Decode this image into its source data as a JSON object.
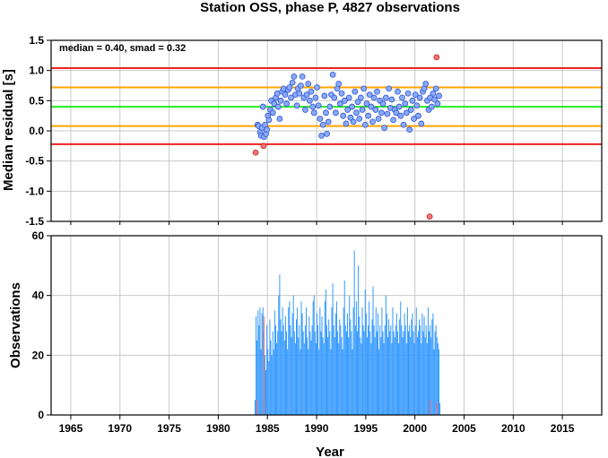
{
  "title": "Station OSS, phase P, 4827 observations",
  "colors": {
    "median_line": "#22ee22",
    "smad_line": "#ffa500",
    "limit_line": "#ee2222",
    "point_fill": "#88aaff",
    "point_stroke": "#3355cc",
    "outlier_fill": "#ff7070",
    "bar": "#3399ff",
    "bar_outlier": "#ff6666",
    "grid": "#c8c8c8"
  },
  "chart_data": [
    {
      "type": "scatter",
      "annotation": "median = 0.40, smad = 0.32",
      "ylabel": "Median residual [s]",
      "xlim": [
        1963,
        2019
      ],
      "ylim": [
        -1.5,
        1.5
      ],
      "y_ticks": [
        "1.5",
        "1.0",
        "0.5",
        "0.0",
        "-0.5",
        "-1.0",
        "-1.5"
      ],
      "y_tick_values": [
        1.5,
        1.0,
        0.5,
        0.0,
        -0.5,
        -1.0,
        -1.5
      ],
      "grid": true,
      "horizontal_lines": [
        {
          "name": "upper limit",
          "value": 1.04,
          "color": "#ee2222"
        },
        {
          "name": "median + smad",
          "value": 0.72,
          "color": "#ffa500"
        },
        {
          "name": "median",
          "value": 0.4,
          "color": "#22ee22"
        },
        {
          "name": "median - smad",
          "value": 0.08,
          "color": "#ffa500"
        },
        {
          "name": "lower limit",
          "value": -0.22,
          "color": "#ee2222"
        }
      ],
      "points": [
        [
          1984.0,
          0.1
        ],
        [
          1984.1,
          0.08
        ],
        [
          1984.25,
          -0.02
        ],
        [
          1984.35,
          -0.08
        ],
        [
          1984.45,
          0.05
        ],
        [
          1984.55,
          0.4
        ],
        [
          1984.65,
          -0.1
        ],
        [
          1984.75,
          0.1
        ],
        [
          1984.85,
          -0.05
        ],
        [
          1984.95,
          0.02
        ],
        [
          1985.05,
          0.25
        ],
        [
          1985.15,
          0.18
        ],
        [
          1985.3,
          0.35
        ],
        [
          1985.4,
          0.5
        ],
        [
          1985.55,
          0.3
        ],
        [
          1985.7,
          0.45
        ],
        [
          1985.85,
          0.55
        ],
        [
          1986.0,
          0.62
        ],
        [
          1986.1,
          0.4
        ],
        [
          1986.25,
          0.2
        ],
        [
          1986.35,
          0.5
        ],
        [
          1986.5,
          0.65
        ],
        [
          1986.65,
          0.7
        ],
        [
          1986.8,
          0.6
        ],
        [
          1986.95,
          0.45
        ],
        [
          1987.1,
          0.68
        ],
        [
          1987.25,
          0.72
        ],
        [
          1987.4,
          0.55
        ],
        [
          1987.55,
          0.8
        ],
        [
          1987.7,
          0.9
        ],
        [
          1987.85,
          0.6
        ],
        [
          1988.0,
          0.42
        ],
        [
          1988.1,
          0.7
        ],
        [
          1988.25,
          0.62
        ],
        [
          1988.4,
          0.75
        ],
        [
          1988.55,
          0.9
        ],
        [
          1988.7,
          0.55
        ],
        [
          1988.85,
          0.35
        ],
        [
          1989.0,
          0.6
        ],
        [
          1989.15,
          0.78
        ],
        [
          1989.3,
          0.5
        ],
        [
          1989.45,
          0.65
        ],
        [
          1989.6,
          0.4
        ],
        [
          1989.75,
          0.3
        ],
        [
          1989.9,
          0.55
        ],
        [
          1990.05,
          0.72
        ],
        [
          1990.2,
          0.42
        ],
        [
          1990.35,
          0.2
        ],
        [
          1990.5,
          -0.08
        ],
        [
          1990.65,
          0.1
        ],
        [
          1990.8,
          0.58
        ],
        [
          1990.95,
          0.3
        ],
        [
          1991.05,
          -0.05
        ],
        [
          1991.2,
          0.15
        ],
        [
          1991.35,
          0.4
        ],
        [
          1991.5,
          0.6
        ],
        [
          1991.65,
          0.93
        ],
        [
          1991.8,
          0.55
        ],
        [
          1991.95,
          0.3
        ],
        [
          1992.1,
          0.7
        ],
        [
          1992.25,
          0.78
        ],
        [
          1992.4,
          0.45
        ],
        [
          1992.55,
          0.62
        ],
        [
          1992.7,
          0.25
        ],
        [
          1992.85,
          0.5
        ],
        [
          1993.0,
          0.12
        ],
        [
          1993.15,
          0.35
        ],
        [
          1993.3,
          0.55
        ],
        [
          1993.45,
          0.22
        ],
        [
          1993.6,
          0.4
        ],
        [
          1993.75,
          0.15
        ],
        [
          1993.9,
          0.65
        ],
        [
          1994.05,
          0.3
        ],
        [
          1994.2,
          0.48
        ],
        [
          1994.35,
          0.2
        ],
        [
          1994.5,
          0.55
        ],
        [
          1994.65,
          0.35
        ],
        [
          1994.8,
          0.7
        ],
        [
          1994.95,
          0.1
        ],
        [
          1995.1,
          0.45
        ],
        [
          1995.25,
          0.25
        ],
        [
          1995.4,
          0.6
        ],
        [
          1995.55,
          0.4
        ],
        [
          1995.7,
          0.15
        ],
        [
          1995.85,
          0.55
        ],
        [
          1996.0,
          0.35
        ],
        [
          1996.15,
          0.65
        ],
        [
          1996.3,
          0.2
        ],
        [
          1996.45,
          0.5
        ],
        [
          1996.6,
          0.3
        ],
        [
          1996.75,
          0.45
        ],
        [
          1996.9,
          0.05
        ],
        [
          1997.05,
          0.55
        ],
        [
          1997.2,
          0.28
        ],
        [
          1997.35,
          0.7
        ],
        [
          1997.5,
          0.38
        ],
        [
          1997.65,
          0.52
        ],
        [
          1997.8,
          0.18
        ],
        [
          1997.95,
          0.35
        ],
        [
          1998.1,
          0.3
        ],
        [
          1998.25,
          0.65
        ],
        [
          1998.4,
          0.4
        ],
        [
          1998.55,
          0.25
        ],
        [
          1998.7,
          0.55
        ],
        [
          1998.85,
          0.1
        ],
        [
          1999.0,
          0.45
        ],
        [
          1999.15,
          0.3
        ],
        [
          1999.3,
          0.62
        ],
        [
          1999.45,
          0.02
        ],
        [
          1999.6,
          0.35
        ],
        [
          1999.75,
          0.5
        ],
        [
          1999.9,
          0.2
        ],
        [
          2000.05,
          0.6
        ],
        [
          2000.2,
          0.42
        ],
        [
          2000.35,
          0.25
        ],
        [
          2000.5,
          0.55
        ],
        [
          2000.65,
          0.12
        ],
        [
          2000.8,
          0.65
        ],
        [
          2000.95,
          0.7
        ],
        [
          2001.1,
          0.78
        ],
        [
          2001.25,
          0.5
        ],
        [
          2001.4,
          0.35
        ],
        [
          2001.55,
          0.55
        ],
        [
          2001.7,
          0.4
        ],
        [
          2001.85,
          0.62
        ],
        [
          2002.0,
          0.52
        ],
        [
          2002.15,
          0.7
        ],
        [
          2002.3,
          0.45
        ],
        [
          2002.45,
          0.58
        ]
      ],
      "outliers": [
        [
          1983.8,
          -0.36
        ],
        [
          1984.6,
          -0.25
        ],
        [
          2001.5,
          -1.42
        ],
        [
          2002.2,
          1.22
        ]
      ]
    },
    {
      "type": "bar",
      "ylabel": "Observations",
      "xlabel": "Year",
      "xlim": [
        1963,
        2019
      ],
      "ylim": [
        0,
        60
      ],
      "y_ticks": [
        "60",
        "40",
        "20",
        "0"
      ],
      "y_tick_values": [
        60,
        40,
        20,
        0
      ],
      "x_ticks": [
        "1965",
        "1970",
        "1975",
        "1980",
        "1985",
        "1990",
        "1995",
        "2000",
        "2005",
        "2010",
        "2015"
      ],
      "x_tick_values": [
        1965,
        1970,
        1975,
        1980,
        1985,
        1990,
        1995,
        2000,
        2005,
        2010,
        2015
      ],
      "grid": true,
      "bin_width_years": 0.1,
      "bins": [
        {
          "start": 1983.7,
          "values": [
            5,
            33,
            25,
            35,
            30,
            36,
            22,
            34,
            36,
            28,
            20,
            15,
            30,
            22,
            18,
            32,
            25,
            20,
            28,
            22,
            35,
            30,
            24,
            28,
            40,
            47,
            32,
            28,
            36,
            30,
            25,
            33,
            28,
            22,
            36,
            38,
            30,
            26,
            34,
            40,
            28,
            24,
            32,
            36,
            26,
            30,
            22,
            38,
            34,
            28,
            24,
            30,
            36,
            26,
            22,
            33,
            28,
            25,
            30,
            38,
            40,
            28,
            24,
            34,
            30,
            22,
            36,
            28,
            33,
            26,
            24,
            38,
            42,
            30,
            26,
            32,
            28,
            22,
            36,
            44,
            30,
            26,
            34,
            38,
            28,
            24,
            32,
            30,
            26,
            22,
            36,
            45,
            30,
            28,
            34,
            26,
            40,
            32,
            28,
            22,
            36,
            55,
            30,
            38,
            28,
            50,
            33,
            26,
            24,
            36,
            30,
            28,
            42,
            34,
            26,
            30,
            38,
            28,
            24,
            32,
            43,
            30,
            26,
            36,
            28,
            34,
            22,
            30,
            26,
            36,
            28,
            24,
            30,
            40,
            34,
            26,
            32,
            28,
            30,
            24,
            36,
            28,
            26,
            30,
            34,
            28,
            24,
            32,
            38,
            30,
            26,
            28,
            34,
            30,
            24,
            36,
            28,
            30,
            26,
            32,
            34,
            28,
            24,
            30,
            36,
            26,
            28,
            32,
            30,
            24,
            34,
            28,
            33,
            26,
            30,
            24,
            36,
            28,
            30,
            26,
            32,
            34,
            22,
            28,
            30,
            26
          ]
        },
        {
          "start": 2002.3,
          "values": [
            24,
            22,
            4
          ]
        }
      ],
      "outlier_bins": [
        [
          1983.9,
          5
        ],
        [
          1984.6,
          33
        ],
        [
          2001.5,
          5
        ],
        [
          2002.2,
          4
        ]
      ]
    }
  ]
}
